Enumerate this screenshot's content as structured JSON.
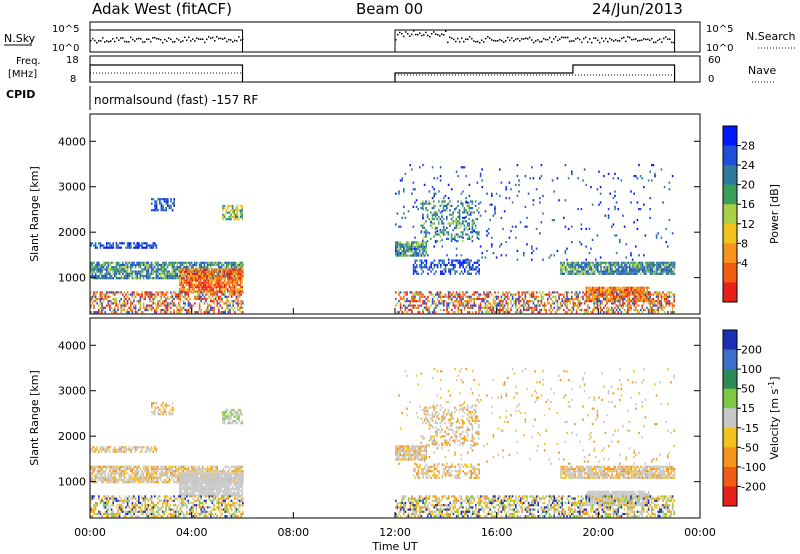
{
  "header": {
    "station": "Adak West (fitACF)",
    "beam": "Beam 00",
    "date": "24/Jun/2013"
  },
  "top_panels": {
    "nsky_label": "N.Sky",
    "nsearch_label": "N.Search",
    "nsky_ticks": [
      "10^5",
      "10^0"
    ],
    "nsky_right_ticks": [
      "10^5",
      "10^0"
    ],
    "freq_label_1": "Freq.",
    "freq_label_2": "[MHz]",
    "freq_ticks": [
      "18",
      "8"
    ],
    "nave_label": "Nave",
    "nave_ticks": [
      "60",
      "0"
    ],
    "cpid_label": "CPID",
    "cpid_text": "normalsound (fast) -157 RF"
  },
  "chart_data": [
    {
      "type": "heatmap",
      "name": "power",
      "ylabel": "Slant Range [km]",
      "ylim": [
        200,
        4600
      ],
      "yticks": [
        "4000",
        "3000",
        "2000",
        "1000"
      ],
      "colorbar_label": "Power [dB]",
      "colorbar_ticks": [
        "28",
        "24",
        "20",
        "16",
        "12",
        "8",
        "4"
      ],
      "colorbar_colors": [
        "#0018ff",
        "#1f4fd8",
        "#2f7a9a",
        "#3a9e5a",
        "#a8d048",
        "#f5c21b",
        "#f7941d",
        "#f25c14",
        "#e8201a"
      ],
      "data_coverage_hours": [
        [
          0,
          6
        ],
        [
          12,
          23
        ]
      ]
    },
    {
      "type": "heatmap",
      "name": "velocity",
      "ylabel": "Slant Range [km]",
      "ylim": [
        200,
        4600
      ],
      "yticks": [
        "4000",
        "3000",
        "2000",
        "1000"
      ],
      "colorbar_label": "Velocity [m s^-1]",
      "colorbar_ticks": [
        "200",
        "100",
        "50",
        "15",
        "-15",
        "-50",
        "-100",
        "-200"
      ],
      "colorbar_colors": [
        "#1b2fb5",
        "#3d6fc7",
        "#2e8b57",
        "#7ec843",
        "#c8c8c8",
        "#f5c21b",
        "#f7941d",
        "#f25c14",
        "#e8201a"
      ],
      "data_coverage_hours": [
        [
          0,
          6
        ],
        [
          12,
          23
        ]
      ]
    }
  ],
  "xaxis": {
    "label": "Time UT",
    "ticks": [
      "00:00",
      "04:00",
      "08:00",
      "12:00",
      "16:00",
      "20:00",
      "00:00"
    ],
    "range_hours": [
      0,
      24
    ]
  }
}
